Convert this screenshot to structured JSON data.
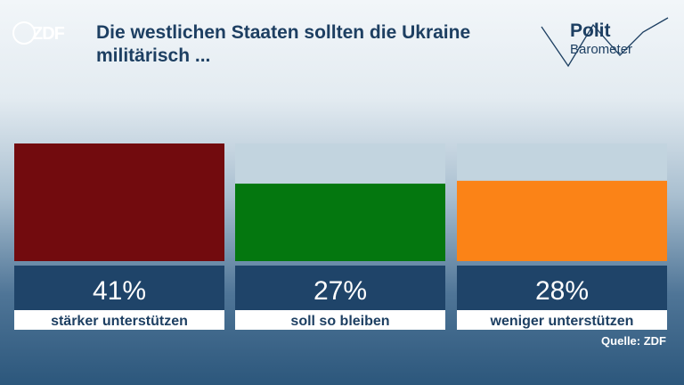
{
  "header": {
    "logo_text": "ZDF",
    "title": "Die westlichen Staaten sollten die Ukraine militärisch ...",
    "brand_line1": "Polit",
    "brand_line2": "Barometer"
  },
  "chart_data": {
    "type": "bar",
    "categories": [
      "stärker unterstützen",
      "soll so bleiben",
      "weniger unterstützen"
    ],
    "values": [
      41,
      27,
      28
    ],
    "value_labels": [
      "41%",
      "27%",
      "28%"
    ],
    "ylim": [
      0,
      41
    ],
    "colors": [
      "#720b0e",
      "#04770f",
      "#fb8317"
    ],
    "track_color": "#c2d4df"
  },
  "footer": {
    "source": "Quelle: ZDF"
  }
}
